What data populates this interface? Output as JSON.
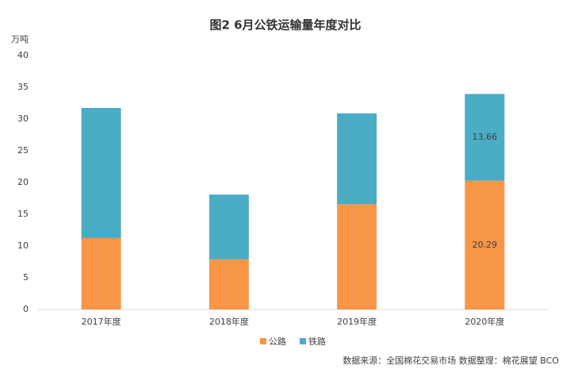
{
  "chart_data": {
    "type": "stacked_bar",
    "title": "图2 6月公铁运输量年度对比",
    "y_label": "万吨",
    "categories": [
      "2017年度",
      "2018年度",
      "2019年度",
      "2020年度"
    ],
    "series": [
      {
        "name": "公路",
        "color": "#f79646",
        "values": [
          11.25,
          7.9,
          16.6,
          20.29
        ],
        "value_labels": [
          null,
          null,
          null,
          "20.29"
        ]
      },
      {
        "name": "铁路",
        "color": "#4bacc6",
        "values": [
          20.5,
          10.2,
          14.3,
          13.66
        ],
        "value_labels": [
          null,
          null,
          null,
          "13.66"
        ]
      }
    ],
    "ylim": [
      0,
      40
    ],
    "yticks": [
      0,
      5,
      10,
      15,
      20,
      25,
      30,
      35,
      40
    ],
    "source": "数据来源：全国棉花交易市场  数据整理：棉花展望 BCO"
  }
}
